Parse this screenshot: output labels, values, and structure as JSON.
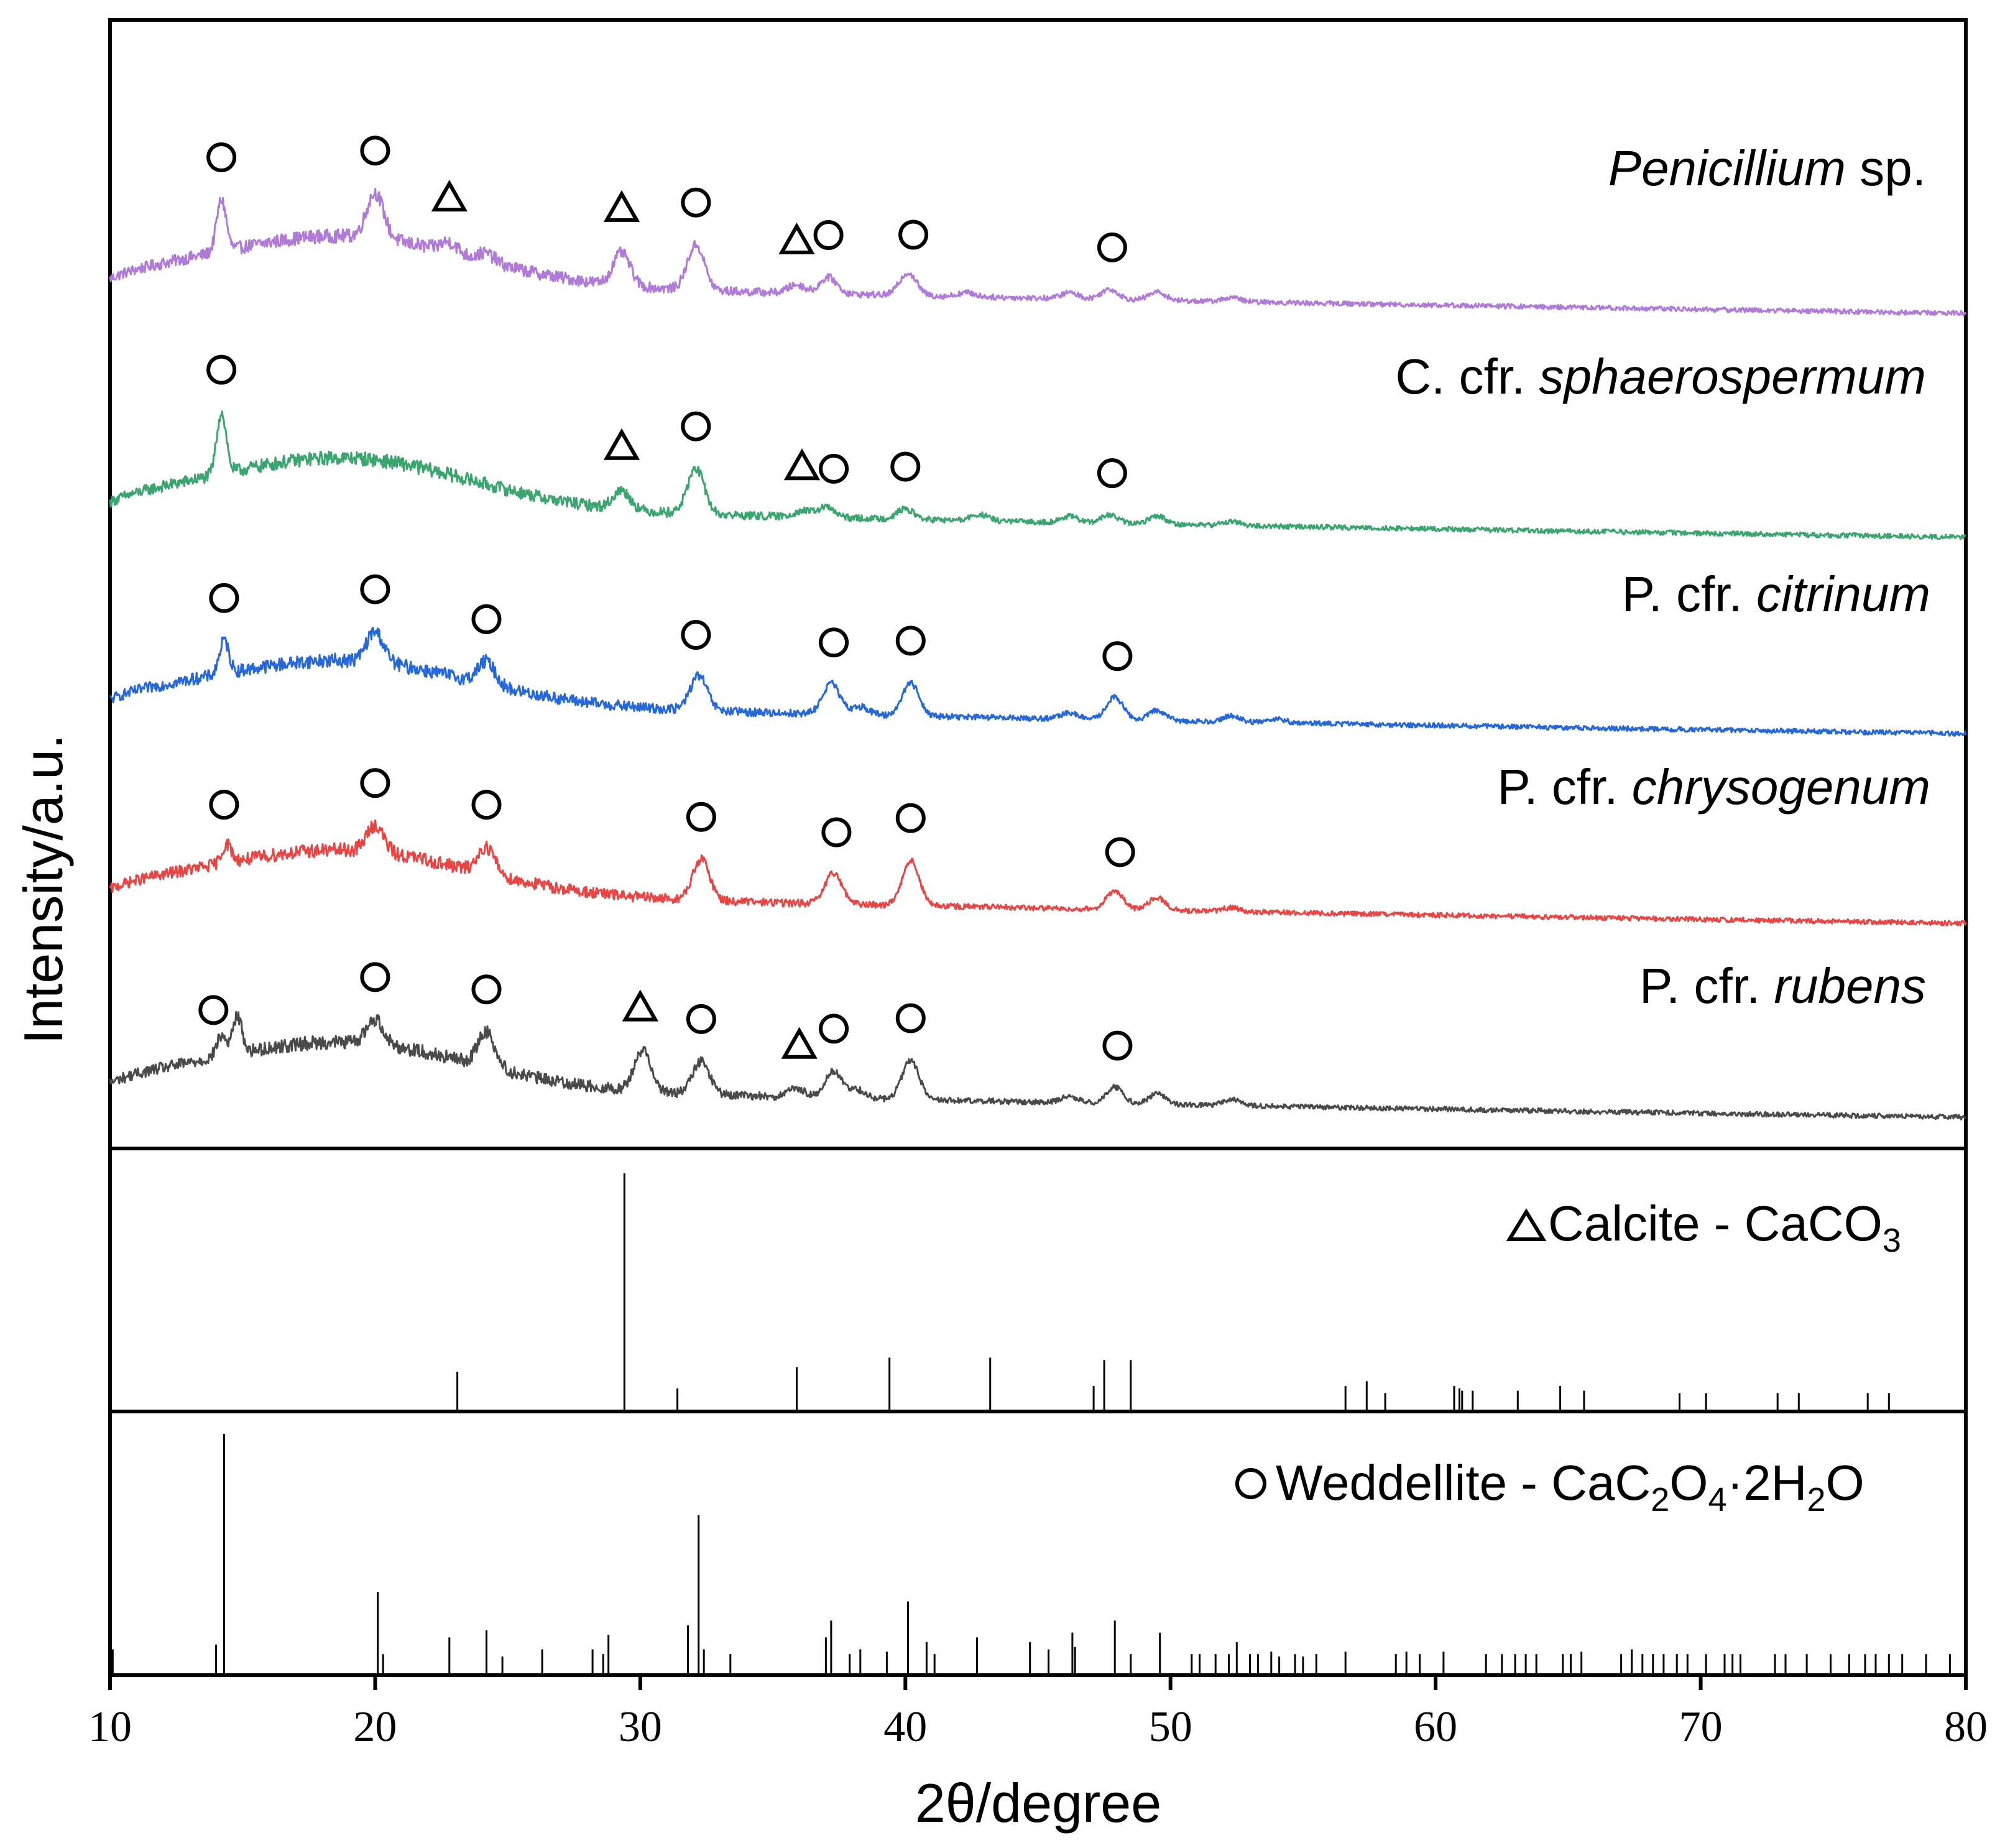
{
  "chart_data": [
    {
      "type": "line",
      "panel": "xrd-patterns",
      "ylabel": "Intensity/a.u.",
      "xlabel": "2θ/degree",
      "xlim": [
        10,
        80
      ],
      "xticks": [
        "10",
        "20",
        "30",
        "40",
        "50",
        "60",
        "70",
        "80"
      ],
      "yticks": "none",
      "grid": false,
      "legend": "inline labels at right of each curve",
      "series": [
        {
          "label": {
            "italic_part": "Penicillium",
            "roman_part": " sp."
          },
          "color": "#b07ad8",
          "baseline": 0.1,
          "hump": 0.22,
          "peaks": [
            [
              14.2,
              0.25
            ],
            [
              20.0,
              0.22
            ],
            [
              22.8,
              0.05
            ],
            [
              24.2,
              0.04
            ],
            [
              29.3,
              0.16
            ],
            [
              32.1,
              0.22
            ],
            [
              35.9,
              0.04
            ],
            [
              37.1,
              0.08
            ],
            [
              40.1,
              0.11
            ],
            [
              42.3,
              0.02
            ],
            [
              46.2,
              0.03
            ],
            [
              47.7,
              0.05
            ],
            [
              49.5,
              0.04
            ],
            [
              52.3,
              0.02
            ]
          ],
          "circle_markers": [
            14.2,
            20.0,
            32.1,
            37.1,
            40.3,
            47.8
          ],
          "triangle_markers": [
            22.8,
            29.3,
            35.9
          ]
        },
        {
          "label": {
            "italic_part": "sphaerospermum",
            "roman_part": "C. cfr. "
          },
          "color": "#3aa56e",
          "baseline": 0.1,
          "hump": 0.23,
          "peaks": [
            [
              14.2,
              0.3
            ],
            [
              29.3,
              0.09
            ],
            [
              32.1,
              0.22
            ],
            [
              36.1,
              0.03
            ],
            [
              37.0,
              0.05
            ],
            [
              40.0,
              0.05
            ],
            [
              42.8,
              0.03
            ],
            [
              46.2,
              0.03
            ],
            [
              47.7,
              0.04
            ],
            [
              49.5,
              0.04
            ],
            [
              52.3,
              0.02
            ]
          ],
          "circle_markers": [
            14.2,
            32.1,
            37.3,
            40.0,
            47.8
          ],
          "triangle_markers": [
            29.3,
            36.1
          ]
        },
        {
          "label": {
            "italic_part": "citrinum",
            "roman_part": "P. cfr. "
          },
          "color": "#2768d8",
          "baseline": 0.1,
          "hump": 0.2,
          "peaks": [
            [
              14.3,
              0.16
            ],
            [
              20.0,
              0.15
            ],
            [
              24.2,
              0.11
            ],
            [
              32.2,
              0.17
            ],
            [
              37.2,
              0.15
            ],
            [
              38.3,
              0.04
            ],
            [
              40.2,
              0.16
            ],
            [
              46.2,
              0.03
            ],
            [
              47.9,
              0.11
            ],
            [
              49.5,
              0.05
            ],
            [
              52.3,
              0.03
            ],
            [
              54.0,
              0.02
            ]
          ],
          "circle_markers": [
            14.3,
            20.0,
            24.2,
            32.1,
            37.3,
            40.2,
            48.0
          ],
          "triangle_markers": []
        },
        {
          "label": {
            "italic_part": "chrysogenum",
            "roman_part": "P. cfr. "
          },
          "color": "#e84545",
          "baseline": 0.1,
          "hump": 0.2,
          "peaks": [
            [
              14.4,
              0.09
            ],
            [
              20.0,
              0.13
            ],
            [
              24.2,
              0.13
            ],
            [
              32.3,
              0.2
            ],
            [
              37.3,
              0.15
            ],
            [
              40.2,
              0.22
            ],
            [
              47.9,
              0.09
            ],
            [
              49.5,
              0.06
            ],
            [
              52.3,
              0.02
            ]
          ],
          "circle_markers": [
            14.3,
            20.0,
            24.2,
            32.3,
            37.4,
            40.2,
            48.1
          ],
          "triangle_markers": []
        },
        {
          "label": {
            "italic_part": "rubens",
            "roman_part": "P. cfr. "
          },
          "color": "#4a4a4a",
          "baseline": 0.1,
          "hump": 0.21,
          "peaks": [
            [
              14.2,
              0.1
            ],
            [
              14.8,
              0.18
            ],
            [
              20.0,
              0.12
            ],
            [
              24.2,
              0.17
            ],
            [
              30.1,
              0.2
            ],
            [
              32.3,
              0.16
            ],
            [
              35.9,
              0.04
            ],
            [
              37.3,
              0.13
            ],
            [
              38.2,
              0.04
            ],
            [
              40.2,
              0.19
            ],
            [
              46.2,
              0.03
            ],
            [
              47.9,
              0.08
            ],
            [
              49.5,
              0.05
            ],
            [
              52.3,
              0.03
            ]
          ],
          "circle_markers": [
            13.9,
            20.0,
            24.2,
            32.3,
            37.3,
            40.2,
            48.0
          ],
          "triangle_markers": [
            30.0,
            36.0
          ]
        }
      ]
    },
    {
      "type": "bar",
      "panel": "reference-calcite",
      "legend_marker": "triangle",
      "label": {
        "main": "Calcite - CaCO",
        "sub3": "3"
      },
      "xlim": [
        10,
        80
      ],
      "lines": [
        [
          23.1,
          0.16
        ],
        [
          29.4,
          1.0
        ],
        [
          31.4,
          0.09
        ],
        [
          35.9,
          0.18
        ],
        [
          39.4,
          0.22
        ],
        [
          43.2,
          0.22
        ],
        [
          47.1,
          0.1
        ],
        [
          47.5,
          0.21
        ],
        [
          48.5,
          0.21
        ],
        [
          56.6,
          0.1
        ],
        [
          57.4,
          0.12
        ],
        [
          58.1,
          0.07
        ],
        [
          60.7,
          0.1
        ],
        [
          60.9,
          0.09
        ],
        [
          61.0,
          0.08
        ],
        [
          61.4,
          0.08
        ],
        [
          63.1,
          0.08
        ],
        [
          64.7,
          0.1
        ],
        [
          65.6,
          0.08
        ],
        [
          69.2,
          0.07
        ],
        [
          70.2,
          0.07
        ],
        [
          72.9,
          0.07
        ],
        [
          73.7,
          0.07
        ],
        [
          76.3,
          0.07
        ],
        [
          77.1,
          0.07
        ]
      ]
    },
    {
      "type": "bar",
      "panel": "reference-weddellite",
      "legend_marker": "circle",
      "label": {
        "main": "Weddellite - CaC",
        "sub1": "2",
        "mid1": "O",
        "sub2": "4",
        "mid2": "·2H",
        "sub3": "2",
        "end": "O"
      },
      "xlim": [
        10,
        80
      ],
      "lines": [
        [
          10.1,
          0.1
        ],
        [
          14.0,
          0.12
        ],
        [
          14.3,
          1.0
        ],
        [
          20.1,
          0.34
        ],
        [
          20.3,
          0.08
        ],
        [
          22.8,
          0.15
        ],
        [
          24.2,
          0.18
        ],
        [
          24.8,
          0.07
        ],
        [
          26.3,
          0.1
        ],
        [
          28.2,
          0.1
        ],
        [
          28.6,
          0.08
        ],
        [
          28.8,
          0.16
        ],
        [
          31.8,
          0.2
        ],
        [
          32.2,
          0.66
        ],
        [
          32.4,
          0.1
        ],
        [
          33.4,
          0.08
        ],
        [
          37.0,
          0.15
        ],
        [
          37.2,
          0.22
        ],
        [
          37.9,
          0.08
        ],
        [
          38.3,
          0.1
        ],
        [
          39.3,
          0.09
        ],
        [
          40.1,
          0.3
        ],
        [
          40.8,
          0.13
        ],
        [
          41.1,
          0.08
        ],
        [
          42.7,
          0.15
        ],
        [
          44.7,
          0.13
        ],
        [
          45.4,
          0.1
        ],
        [
          46.3,
          0.17
        ],
        [
          46.4,
          0.11
        ],
        [
          47.9,
          0.22
        ],
        [
          48.5,
          0.08
        ],
        [
          49.6,
          0.17
        ],
        [
          50.8,
          0.08
        ],
        [
          51.1,
          0.08
        ],
        [
          51.7,
          0.08
        ],
        [
          52.2,
          0.08
        ],
        [
          52.5,
          0.13
        ],
        [
          53.0,
          0.08
        ],
        [
          53.3,
          0.08
        ],
        [
          53.8,
          0.09
        ],
        [
          54.1,
          0.07
        ],
        [
          54.7,
          0.08
        ],
        [
          55.0,
          0.07
        ],
        [
          55.5,
          0.08
        ],
        [
          56.6,
          0.09
        ],
        [
          58.5,
          0.08
        ],
        [
          58.9,
          0.09
        ],
        [
          59.4,
          0.08
        ],
        [
          60.3,
          0.09
        ],
        [
          61.9,
          0.08
        ],
        [
          62.5,
          0.08
        ],
        [
          63.0,
          0.08
        ],
        [
          63.4,
          0.08
        ],
        [
          63.8,
          0.08
        ],
        [
          64.8,
          0.08
        ],
        [
          65.1,
          0.08
        ],
        [
          65.5,
          0.09
        ],
        [
          67.0,
          0.08
        ],
        [
          67.4,
          0.1
        ],
        [
          67.8,
          0.08
        ],
        [
          68.2,
          0.08
        ],
        [
          68.6,
          0.08
        ],
        [
          69.1,
          0.08
        ],
        [
          69.5,
          0.08
        ],
        [
          70.2,
          0.08
        ],
        [
          70.9,
          0.08
        ],
        [
          71.2,
          0.08
        ],
        [
          71.5,
          0.08
        ],
        [
          72.8,
          0.08
        ],
        [
          73.2,
          0.08
        ],
        [
          74.0,
          0.08
        ],
        [
          74.9,
          0.08
        ],
        [
          75.6,
          0.08
        ],
        [
          76.2,
          0.08
        ],
        [
          76.6,
          0.08
        ],
        [
          77.1,
          0.08
        ],
        [
          77.6,
          0.08
        ],
        [
          78.5,
          0.08
        ],
        [
          79.4,
          0.08
        ]
      ]
    }
  ]
}
